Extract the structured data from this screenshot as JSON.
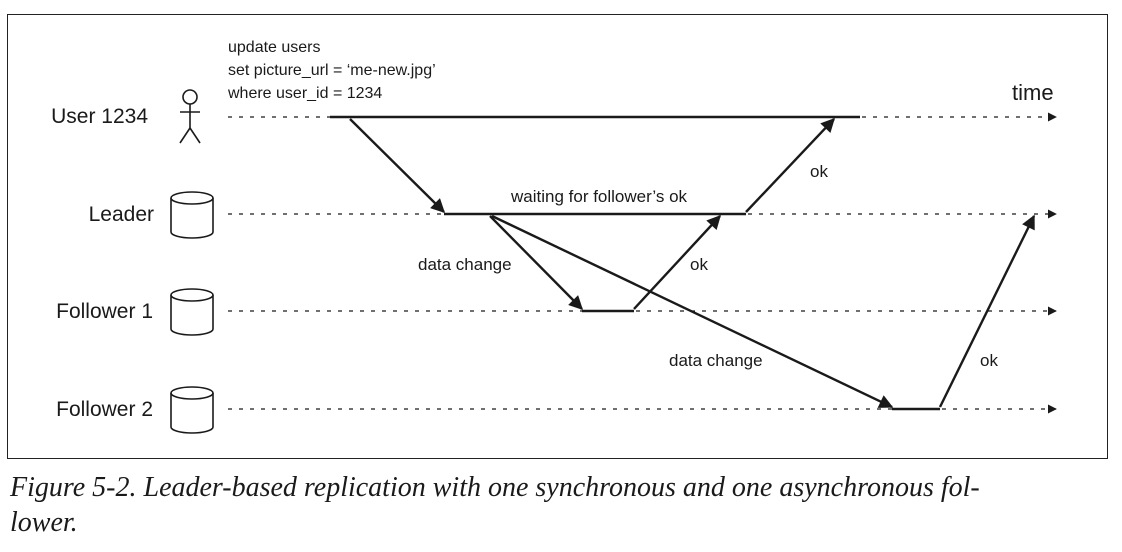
{
  "diagram": {
    "time_label": "time",
    "sql": [
      "update users",
      "set picture_url = ‘me-new.jpg’",
      "where user_id = 1234"
    ],
    "lanes": [
      {
        "label": "User 1234",
        "icon": "user-icon"
      },
      {
        "label": "Leader",
        "icon": "database-icon"
      },
      {
        "label": "Follower 1",
        "icon": "database-icon"
      },
      {
        "label": "Follower 2",
        "icon": "database-icon"
      }
    ],
    "annotations": {
      "waiting": "waiting for follower’s ok",
      "data_change_1": "data change",
      "ok_follower1": "ok",
      "ok_leader": "ok",
      "data_change_2": "data change",
      "ok_follower2": "ok"
    }
  },
  "caption": {
    "line1": "Figure 5-2. Leader-based replication with one synchronous and one asynchronous fol-",
    "line2": "lower."
  }
}
